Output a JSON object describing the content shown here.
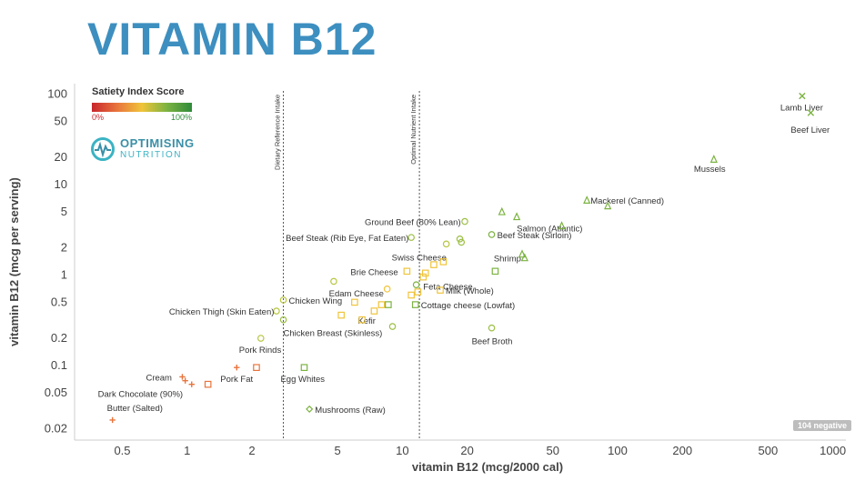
{
  "page": {
    "title": "VITAMIN B12",
    "badge": "104 negative"
  },
  "legend": {
    "title": "Satiety Index Score",
    "min_label": "0%",
    "max_label": "100%"
  },
  "logo": {
    "line1": "OPTIMISING",
    "line2": "NUTRITION"
  },
  "colors": {
    "title": "#3d8fc0",
    "low": "#e8743b",
    "mid": "#f0c43a",
    "high": "#7cb342"
  },
  "chart_data": {
    "type": "scatter",
    "xlabel": "vitamin B12 (mcg/2000 cal)",
    "ylabel": "vitamin B12 (mcg per serving)",
    "xscale": "log",
    "yscale": "log",
    "xlim": [
      0.3,
      1150
    ],
    "ylim": [
      0.015,
      130
    ],
    "xticks": [
      0.5,
      1,
      2,
      5,
      10,
      20,
      50,
      100,
      200,
      500,
      1000
    ],
    "xtick_labels": [
      "0.5",
      "1",
      "2",
      "5",
      "10",
      "20",
      "50",
      "100",
      "200",
      "500",
      "1000"
    ],
    "yticks": [
      0.02,
      0.05,
      0.1,
      0.2,
      0.5,
      1,
      2,
      5,
      10,
      20,
      50,
      100
    ],
    "ytick_labels": [
      "0.02",
      "0.05",
      "0.1",
      "0.2",
      "0.5",
      "1",
      "2",
      "5",
      "10",
      "20",
      "50",
      "100"
    ],
    "reference_lines": [
      {
        "x": 2.8,
        "label": "Dietary Reference Intake"
      },
      {
        "x": 12,
        "label": "Optimal Nutrient Intake"
      }
    ],
    "points": [
      {
        "label": "Lamb Liver",
        "x": 720,
        "y": 95,
        "marker": "x",
        "color": "#7cb342"
      },
      {
        "label": "Beef Liver",
        "x": 790,
        "y": 62,
        "marker": "x",
        "color": "#7cb342"
      },
      {
        "label": "Mussels",
        "x": 280,
        "y": 19,
        "marker": "triangle",
        "color": "#7cb342"
      },
      {
        "label": "Mackerel (Canned)",
        "x": 72,
        "y": 6.7,
        "marker": "triangle",
        "color": "#7cb342"
      },
      {
        "label": "Salmon (Atlantic)",
        "x": 34,
        "y": 4.4,
        "marker": "triangle",
        "color": "#7cb342"
      },
      {
        "label": "Beef Steak (Sirloin)",
        "x": 26,
        "y": 2.8,
        "marker": "circle",
        "color": "#7cb342"
      },
      {
        "label": "Ground Beef (80% Lean)",
        "x": 19.5,
        "y": 3.9,
        "marker": "circle",
        "color": "#9cbf45"
      },
      {
        "label": "Beef Steak (Rib Eye, Fat Eaten)",
        "x": 11,
        "y": 2.6,
        "marker": "circle",
        "color": "#9cbf45"
      },
      {
        "label": "Swiss Cheese",
        "x": 16,
        "y": 2.2,
        "marker": "circle",
        "color": "#b8c640"
      },
      {
        "label": "Shrimp",
        "x": 37,
        "y": 1.55,
        "marker": "triangle",
        "color": "#7cb342"
      },
      {
        "label": "Brie Cheese",
        "x": 10.5,
        "y": 1.1,
        "marker": "square",
        "color": "#f0c43a"
      },
      {
        "label": "Feta Cheese",
        "x": 12.5,
        "y": 0.95,
        "marker": "square",
        "color": "#f0c43a"
      },
      {
        "label": "Edam Cheese",
        "x": 8.5,
        "y": 0.7,
        "marker": "circle",
        "color": "#f0c43a"
      },
      {
        "label": "Milk (Whole)",
        "x": 15,
        "y": 0.68,
        "marker": "square",
        "color": "#f0c43a"
      },
      {
        "label": "Cottage cheese (Lowfat)",
        "x": 11.5,
        "y": 0.47,
        "marker": "square",
        "color": "#7cb342"
      },
      {
        "label": "Chicken Wing",
        "x": 2.8,
        "y": 0.53,
        "marker": "circle",
        "color": "#b8c640"
      },
      {
        "label": "Chicken Thigh (Skin Eaten)",
        "x": 2.6,
        "y": 0.4,
        "marker": "circle",
        "color": "#b8c640"
      },
      {
        "label": "Kefir",
        "x": 7.4,
        "y": 0.4,
        "marker": "square",
        "color": "#f0c43a"
      },
      {
        "label": "Chicken Breast (Skinless)",
        "x": 2.8,
        "y": 0.32,
        "marker": "circle",
        "color": "#9cbf45"
      },
      {
        "label": "Pork Rinds",
        "x": 2.2,
        "y": 0.2,
        "marker": "circle",
        "color": "#b8c640"
      },
      {
        "label": "Beef Broth",
        "x": 26,
        "y": 0.26,
        "marker": "circle",
        "color": "#9cbf45"
      },
      {
        "label": "Cream",
        "x": 0.95,
        "y": 0.075,
        "marker": "plus",
        "color": "#e8743b"
      },
      {
        "label": "Dark Chocolate (90%)",
        "x": 0.98,
        "y": 0.068,
        "marker": "plus",
        "color": "#e8743b"
      },
      {
        "label": "Pork Fat",
        "x": 1.7,
        "y": 0.095,
        "marker": "plus",
        "color": "#e8743b"
      },
      {
        "label": "Egg Whites",
        "x": 3.5,
        "y": 0.095,
        "marker": "square",
        "color": "#7cb342"
      },
      {
        "label": "Mushrooms (Raw)",
        "x": 3.7,
        "y": 0.033,
        "marker": "diamond",
        "color": "#7cb342"
      },
      {
        "label": "Butter (Salted)",
        "x": 0.45,
        "y": 0.025,
        "marker": "plus",
        "color": "#e8743b"
      },
      {
        "label": "",
        "x": 1.25,
        "y": 0.062,
        "marker": "square",
        "color": "#e8743b"
      },
      {
        "label": "",
        "x": 2.1,
        "y": 0.095,
        "marker": "square",
        "color": "#e8743b"
      },
      {
        "label": "",
        "x": 1.05,
        "y": 0.062,
        "marker": "plus",
        "color": "#e8743b"
      },
      {
        "label": "",
        "x": 4.8,
        "y": 0.85,
        "marker": "circle",
        "color": "#b8c640"
      },
      {
        "label": "",
        "x": 5.2,
        "y": 0.36,
        "marker": "square",
        "color": "#f0c43a"
      },
      {
        "label": "",
        "x": 6.0,
        "y": 0.5,
        "marker": "square",
        "color": "#f0c43a"
      },
      {
        "label": "",
        "x": 6.5,
        "y": 0.32,
        "marker": "square",
        "color": "#f0c43a"
      },
      {
        "label": "",
        "x": 8.0,
        "y": 0.47,
        "marker": "square",
        "color": "#f0c43a"
      },
      {
        "label": "",
        "x": 8.6,
        "y": 0.47,
        "marker": "square",
        "color": "#7cb342"
      },
      {
        "label": "",
        "x": 9.0,
        "y": 0.27,
        "marker": "circle",
        "color": "#9cbf45"
      },
      {
        "label": "",
        "x": 11.0,
        "y": 0.6,
        "marker": "square",
        "color": "#f0c43a"
      },
      {
        "label": "",
        "x": 11.8,
        "y": 0.65,
        "marker": "square",
        "color": "#f0c43a"
      },
      {
        "label": "",
        "x": 12.8,
        "y": 1.05,
        "marker": "square",
        "color": "#f0c43a"
      },
      {
        "label": "",
        "x": 14.0,
        "y": 1.3,
        "marker": "square",
        "color": "#f0c43a"
      },
      {
        "label": "",
        "x": 15.5,
        "y": 1.4,
        "marker": "square",
        "color": "#f0c43a"
      },
      {
        "label": "",
        "x": 18.5,
        "y": 2.5,
        "marker": "circle",
        "color": "#9cbf45"
      },
      {
        "label": "",
        "x": 18.8,
        "y": 2.3,
        "marker": "circle",
        "color": "#9cbf45"
      },
      {
        "label": "",
        "x": 27,
        "y": 1.1,
        "marker": "square",
        "color": "#7cb342"
      },
      {
        "label": "",
        "x": 29,
        "y": 5.0,
        "marker": "triangle",
        "color": "#7cb342"
      },
      {
        "label": "",
        "x": 36,
        "y": 1.7,
        "marker": "triangle",
        "color": "#7cb342"
      },
      {
        "label": "",
        "x": 55,
        "y": 3.5,
        "marker": "triangle",
        "color": "#7cb342"
      },
      {
        "label": "",
        "x": 90,
        "y": 5.8,
        "marker": "triangle",
        "color": "#7cb342"
      },
      {
        "label": "",
        "x": 11.6,
        "y": 0.78,
        "marker": "circle",
        "color": "#7cb342"
      }
    ]
  }
}
